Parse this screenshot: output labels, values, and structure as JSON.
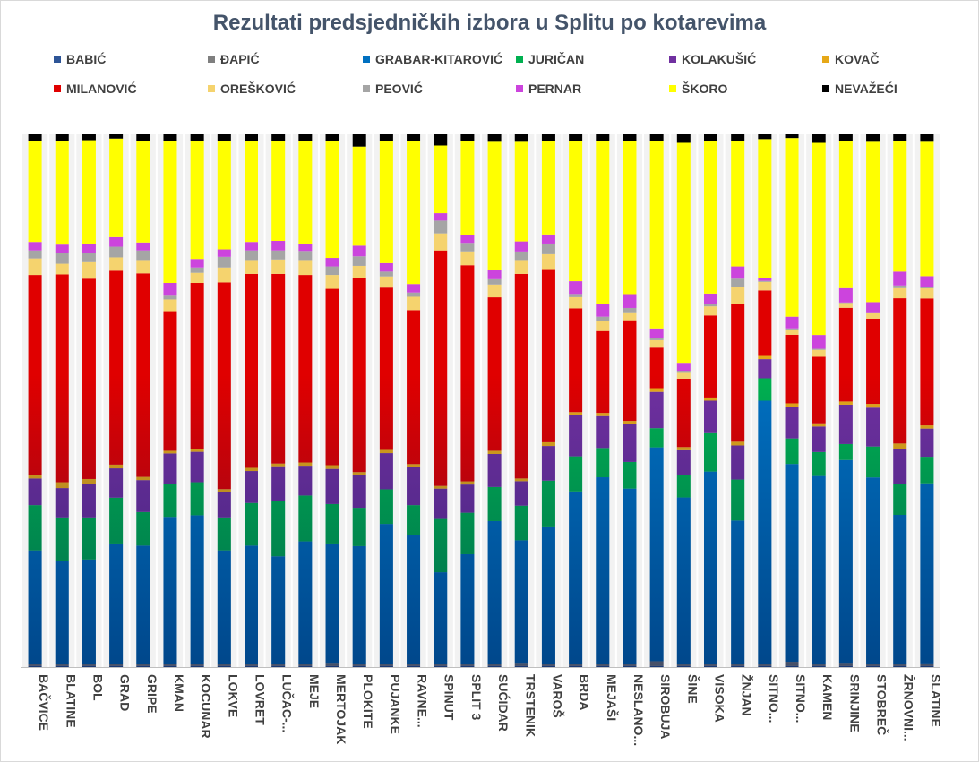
{
  "chart_data": {
    "type": "bar",
    "stacked": true,
    "normalized": true,
    "title": "Rezultati predsjedničkih izbora u Splitu po kotarevima",
    "xlabel": "",
    "ylabel": "",
    "ylim": [
      0,
      100
    ],
    "legend_position": "top",
    "categories": [
      "BAČVICE",
      "BLATINE",
      "BOL",
      "GRAD",
      "GRIPE",
      "KMAN",
      "KOCUNAR",
      "LOKVE",
      "LOVRET",
      "LUČAC-...",
      "MEJE",
      "MERTOJAK",
      "PLOKITE",
      "PUJANKE",
      "RAVNE...",
      "SPINUT",
      "SPLIT 3",
      "SUĆIDAR",
      "TRSTENIK",
      "VAROŠ",
      "BRDA",
      "MEJAŠI",
      "NESLANO...",
      "SIROBUJA",
      "ŠINE",
      "VISOKA",
      "ŽNJAN",
      "SITNO...",
      "SITNO...",
      "KAMEN",
      "SRINJINE",
      "STOBREČ",
      "ŽRNOVNI...",
      "SLATINE"
    ],
    "series": [
      {
        "name": "BABIĆ",
        "color": "#2e5597",
        "values": [
          0.2,
          0.2,
          0.2,
          0.2,
          0.2,
          0.2,
          0.2,
          0.2,
          0.2,
          0.2,
          0.2,
          0.2,
          0.2,
          0.2,
          0.2,
          0.2,
          0.2,
          0.2,
          0.2,
          0.2,
          0.2,
          0.2,
          0.2,
          0.2,
          0.2,
          0.2,
          0.2,
          0.2,
          0.2,
          0.2,
          0.2,
          0.2,
          0.2,
          0.2
        ]
      },
      {
        "name": "ĐAPIĆ",
        "color": "#7f7f7f",
        "values": [
          0.3,
          0.3,
          0.3,
          0.4,
          0.4,
          0.3,
          0.3,
          0.4,
          0.3,
          0.3,
          0.4,
          0.6,
          0.3,
          0.3,
          0.3,
          0.3,
          0.3,
          0.4,
          0.6,
          0.3,
          0.3,
          0.4,
          0.3,
          0.9,
          0.3,
          0.3,
          0.4,
          0.3,
          0.8,
          0.3,
          0.6,
          0.3,
          0.3,
          0.5
        ]
      },
      {
        "name": "GRABAR-KITAROVIĆ",
        "color": "#0070c0",
        "values": [
          21.4,
          19.5,
          19.7,
          22.6,
          22.2,
          27.7,
          28.0,
          21.3,
          22.3,
          20.3,
          23.0,
          22.4,
          22.2,
          26.4,
          24.3,
          17.3,
          20.7,
          26.8,
          23.0,
          25.9,
          32.5,
          35.1,
          33.0,
          40.1,
          31.5,
          36.2,
          26.9,
          49.5,
          37.2,
          35.4,
          38.1,
          35.1,
          28.1,
          33.9
        ]
      },
      {
        "name": "JURIČAN",
        "color": "#00b050",
        "values": [
          8.5,
          8.1,
          7.9,
          8.6,
          6.3,
          6.2,
          6.2,
          6.2,
          8.0,
          10.4,
          8.6,
          7.4,
          7.2,
          6.5,
          5.6,
          10.0,
          7.8,
          6.4,
          6.5,
          8.6,
          6.6,
          5.5,
          5.0,
          3.6,
          4.3,
          7.2,
          7.7,
          4.2,
          4.8,
          4.5,
          3.0,
          5.8,
          5.8,
          5.0
        ]
      },
      {
        "name": "KOLAKUŠIĆ",
        "color": "#7030a0",
        "values": [
          5.0,
          5.5,
          6.2,
          5.5,
          6.0,
          5.7,
          5.7,
          4.7,
          6.0,
          6.5,
          5.6,
          6.6,
          6.1,
          6.8,
          7.1,
          5.7,
          5.3,
          6.2,
          4.6,
          6.5,
          7.8,
          6.0,
          7.1,
          6.8,
          4.6,
          6.1,
          6.4,
          3.6,
          5.9,
          4.8,
          7.4,
          7.3,
          6.6,
          5.3
        ]
      },
      {
        "name": "KOVAČ",
        "color": "#e6a817",
        "values": [
          0.6,
          1.1,
          1.0,
          0.7,
          0.6,
          0.5,
          0.5,
          0.6,
          0.6,
          0.5,
          0.6,
          0.7,
          0.6,
          0.6,
          0.6,
          0.5,
          0.6,
          0.6,
          0.5,
          0.7,
          0.5,
          0.6,
          0.6,
          0.7,
          0.6,
          0.6,
          0.7,
          0.6,
          0.7,
          0.6,
          0.6,
          0.7,
          1.0,
          0.6
        ]
      },
      {
        "name": "MILANOVIĆ",
        "color": "#e00000",
        "values": [
          37.6,
          39.0,
          37.6,
          36.4,
          38.2,
          26.2,
          31.2,
          38.8,
          36.4,
          35.6,
          35.2,
          33.1,
          36.5,
          30.5,
          28.9,
          44.2,
          40.6,
          28.8,
          38.4,
          32.5,
          19.5,
          15.4,
          18.9,
          7.6,
          12.9,
          15.4,
          25.9,
          12.3,
          12.9,
          12.5,
          17.6,
          16.0,
          27.3,
          23.9
        ]
      },
      {
        "name": "OREŠKOVIĆ",
        "color": "#f5d36e",
        "values": [
          3.1,
          2.0,
          3.1,
          2.5,
          2.5,
          2.2,
          1.9,
          2.8,
          2.6,
          2.7,
          2.8,
          2.6,
          2.2,
          2.1,
          2.5,
          3.2,
          2.6,
          2.4,
          2.6,
          2.8,
          2.1,
          1.9,
          1.5,
          1.4,
          1.1,
          1.7,
          3.2,
          1.6,
          1.0,
          1.3,
          0.9,
          1.0,
          1.9,
          1.9
        ]
      },
      {
        "name": "PEOVIĆ",
        "color": "#a5a5a5",
        "values": [
          1.5,
          2.0,
          1.8,
          2.0,
          1.8,
          0.7,
          1.0,
          2.0,
          1.8,
          1.7,
          1.7,
          1.6,
          1.8,
          0.9,
          0.8,
          2.4,
          1.6,
          1.0,
          1.6,
          2.0,
          0.6,
          0.8,
          0.8,
          0.4,
          0.4,
          0.5,
          1.5,
          0.2,
          0.2,
          0.2,
          0.1,
          0.2,
          0.5,
          0.3
        ]
      },
      {
        "name": "PERNAR",
        "color": "#cc44dd",
        "values": [
          1.6,
          1.6,
          1.7,
          1.8,
          1.5,
          2.4,
          1.6,
          1.4,
          1.6,
          1.8,
          1.4,
          1.6,
          2.0,
          1.6,
          1.6,
          1.4,
          1.5,
          1.7,
          1.9,
          1.7,
          2.4,
          2.4,
          2.6,
          1.8,
          1.5,
          1.9,
          2.3,
          0.6,
          2.2,
          2.6,
          2.7,
          1.9,
          2.6,
          2.0
        ]
      },
      {
        "name": "ŠKORO",
        "color": "#ffff00",
        "values": [
          18.9,
          19.4,
          19.4,
          18.5,
          19.1,
          26.6,
          22.2,
          20.3,
          19.0,
          18.8,
          19.3,
          21.9,
          18.6,
          22.9,
          26.9,
          12.7,
          17.6,
          24.1,
          18.7,
          17.6,
          26.3,
          30.6,
          28.7,
          35.1,
          41.5,
          28.7,
          23.5,
          26.0,
          33.6,
          36.1,
          27.6,
          30.1,
          24.5,
          25.3
        ]
      },
      {
        "name": "NEVAŽEĆI",
        "color": "#000000",
        "values": [
          1.3,
          1.3,
          1.1,
          0.8,
          1.2,
          1.3,
          1.2,
          1.3,
          1.2,
          1.2,
          1.2,
          1.3,
          2.3,
          1.3,
          1.2,
          2.1,
          1.3,
          1.4,
          1.4,
          1.2,
          1.3,
          1.3,
          1.3,
          1.3,
          1.6,
          1.2,
          1.3,
          0.9,
          0.7,
          1.6,
          1.3,
          1.4,
          1.3,
          1.4
        ]
      }
    ]
  }
}
